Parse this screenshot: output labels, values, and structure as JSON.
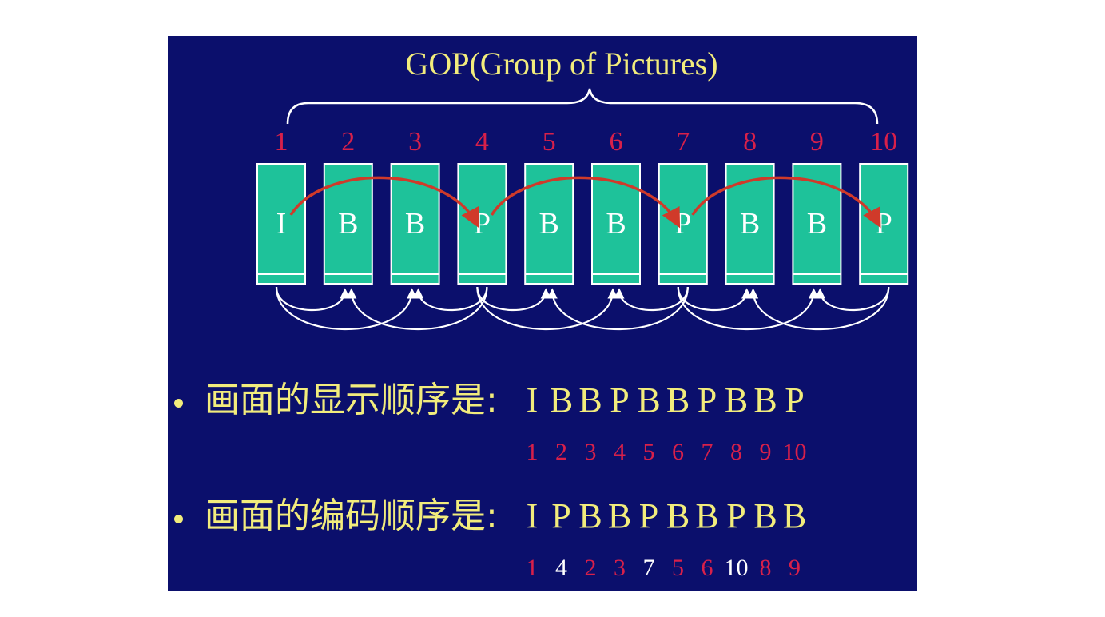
{
  "colors": {
    "background": "#0b0f6c",
    "title": "#f2ec7c",
    "frame_number": "#d8204a",
    "frame_fill": "#1ec29a",
    "frame_letter": "#ffffff",
    "forward_arrow": "#d03a2a",
    "back_arrow": "#ffffff",
    "text": "#f2ec7c",
    "coded_number_highlight": "#ffffff"
  },
  "title": "GOP(Group of  Pictures)",
  "frames": [
    {
      "number": "1",
      "type": "I"
    },
    {
      "number": "2",
      "type": "B"
    },
    {
      "number": "3",
      "type": "B"
    },
    {
      "number": "4",
      "type": "P"
    },
    {
      "number": "5",
      "type": "B"
    },
    {
      "number": "6",
      "type": "B"
    },
    {
      "number": "7",
      "type": "P"
    },
    {
      "number": "8",
      "type": "B"
    },
    {
      "number": "9",
      "type": "B"
    },
    {
      "number": "10",
      "type": "P"
    }
  ],
  "forward_refs": [
    [
      0,
      3
    ],
    [
      3,
      6
    ],
    [
      6,
      9
    ]
  ],
  "backward_refs": [
    [
      0,
      1
    ],
    [
      0,
      2
    ],
    [
      3,
      1
    ],
    [
      3,
      2
    ],
    [
      3,
      4
    ],
    [
      3,
      5
    ],
    [
      6,
      4
    ],
    [
      6,
      5
    ],
    [
      6,
      7
    ],
    [
      6,
      8
    ],
    [
      9,
      7
    ],
    [
      9,
      8
    ]
  ],
  "display_order": {
    "label": "画面的显示顺序是:",
    "letters": [
      "I",
      "B",
      "B",
      "P",
      "B",
      "B",
      "P",
      "B",
      "B",
      "P"
    ],
    "numbers": [
      "1",
      "2",
      "3",
      "4",
      "5",
      "6",
      "7",
      "8",
      "9",
      "10"
    ],
    "highlight": [
      false,
      false,
      false,
      false,
      false,
      false,
      false,
      false,
      false,
      false
    ]
  },
  "coding_order": {
    "label": "画面的编码顺序是:",
    "letters": [
      "I",
      "P",
      "B",
      "B",
      "P",
      "B",
      "B",
      "P",
      "B",
      "B"
    ],
    "numbers": [
      "1",
      "4",
      "2",
      "3",
      "7",
      "5",
      "6",
      "10",
      "8",
      "9"
    ],
    "highlight": [
      false,
      true,
      false,
      false,
      true,
      false,
      false,
      true,
      false,
      false
    ]
  }
}
